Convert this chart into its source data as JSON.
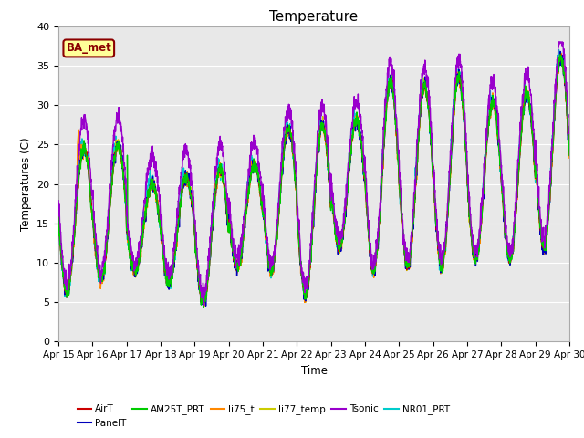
{
  "title": "Temperature",
  "xlabel": "Time",
  "ylabel": "Temperatures (C)",
  "ylim": [
    0,
    40
  ],
  "yticks": [
    0,
    5,
    10,
    15,
    20,
    25,
    30,
    35,
    40
  ],
  "annotation": "BA_met",
  "series": {
    "AirT": {
      "color": "#cc0000",
      "lw": 1.0,
      "zorder": 5
    },
    "PanelT": {
      "color": "#0000bb",
      "lw": 1.0,
      "zorder": 4
    },
    "AM25T_PRT": {
      "color": "#00cc00",
      "lw": 1.0,
      "zorder": 6
    },
    "li75_t": {
      "color": "#ff8800",
      "lw": 1.0,
      "zorder": 3
    },
    "li77_temp": {
      "color": "#cccc00",
      "lw": 1.0,
      "zorder": 2
    },
    "Tsonic": {
      "color": "#9900cc",
      "lw": 1.0,
      "zorder": 7
    },
    "NR01_PRT": {
      "color": "#00cccc",
      "lw": 1.0,
      "zorder": 1
    }
  },
  "xtick_labels": [
    "Apr 15",
    "Apr 16",
    "Apr 17",
    "Apr 18",
    "Apr 19",
    "Apr 20",
    "Apr 21",
    "Apr 22",
    "Apr 23",
    "Apr 24",
    "Apr 25",
    "Apr 26",
    "Apr 27",
    "Apr 28",
    "Apr 29",
    "Apr 30"
  ],
  "bg_color": "#e8e8e8",
  "fig_bg": "#ffffff",
  "legend_order": [
    "AirT",
    "PanelT",
    "AM25T_PRT",
    "li75_t",
    "li77_temp",
    "Tsonic",
    "NR01_PRT"
  ]
}
